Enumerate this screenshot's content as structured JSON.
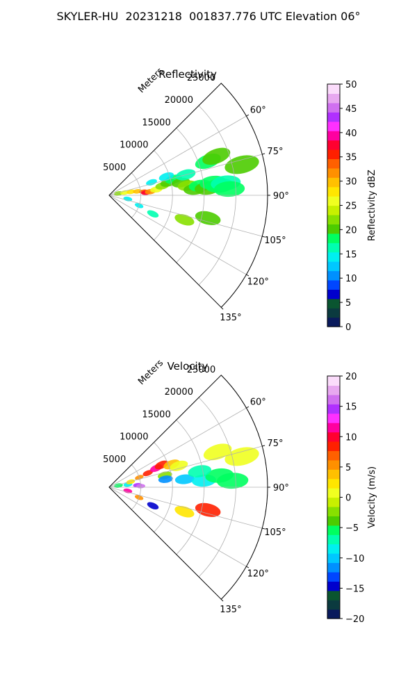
{
  "figure_title": "SKYLER-HU  20231218  001837.776 UTC Elevation 06°",
  "chart_data": [
    {
      "type": "heatmap",
      "subtype": "polar-sector (radar PPI)",
      "title": "Reflectivity",
      "radial_label": "Meters",
      "radial_ticks": [
        5000,
        10000,
        15000,
        20000,
        25000
      ],
      "radial_tick_labels": [
        "5000",
        "10000",
        "15000",
        "20000",
        "25000"
      ],
      "angle_range_deg": [
        45,
        135
      ],
      "angle_ticks": [
        60,
        75,
        90,
        105,
        120,
        135
      ],
      "angle_tick_labels": [
        "60°",
        "75°",
        "90°",
        "105°",
        "120°",
        "135°"
      ],
      "rmax": 25000,
      "grid": true,
      "colorbar": {
        "label": "Reflectivity dBZ",
        "range": [
          0,
          50
        ],
        "ticks": [
          0,
          5,
          10,
          15,
          20,
          25,
          30,
          35,
          40,
          45,
          50
        ],
        "tick_labels": [
          "0",
          "5",
          "10",
          "15",
          "20",
          "25",
          "30",
          "35",
          "40",
          "45",
          "50"
        ],
        "colors": [
          "#0a1a5c",
          "#0b3a3f",
          "#0a5530",
          "#0000cd",
          "#0046ff",
          "#0090ff",
          "#00c8ff",
          "#00f0f0",
          "#00ffb0",
          "#00ff60",
          "#4ccc00",
          "#88e000",
          "#c8f000",
          "#f0ff20",
          "#ffe600",
          "#ffc000",
          "#ff9000",
          "#ff6000",
          "#ff2000",
          "#ff0030",
          "#ff00a0",
          "#ff30ff",
          "#b030ff",
          "#d070f0",
          "#e8a8f0",
          "#fbdcfb"
        ]
      },
      "echoes": [
        {
          "az": 79,
          "r": 1500,
          "value": 22
        },
        {
          "az": 80,
          "r": 2500,
          "value": 25
        },
        {
          "az": 81,
          "r": 3500,
          "value": 27
        },
        {
          "az": 82,
          "r": 4500,
          "value": 29
        },
        {
          "az": 84,
          "r": 5500,
          "value": 34
        },
        {
          "az": 86,
          "r": 5800,
          "value": 37
        },
        {
          "az": 85,
          "r": 6500,
          "value": 31
        },
        {
          "az": 83,
          "r": 7500,
          "value": 26
        },
        {
          "az": 80,
          "r": 8500,
          "value": 23
        },
        {
          "az": 78,
          "r": 9500,
          "value": 21
        },
        {
          "az": 76,
          "r": 10500,
          "value": 19
        },
        {
          "az": 80,
          "r": 11500,
          "value": 20
        },
        {
          "az": 83,
          "r": 12500,
          "value": 22
        },
        {
          "az": 86,
          "r": 13500,
          "value": 21
        },
        {
          "az": 84,
          "r": 14500,
          "value": 19
        },
        {
          "az": 86,
          "r": 15500,
          "value": 20
        },
        {
          "az": 83,
          "r": 16500,
          "value": 18
        },
        {
          "az": 85,
          "r": 17500,
          "value": 19
        },
        {
          "az": 84,
          "r": 18500,
          "value": 17
        },
        {
          "az": 87,
          "r": 19000,
          "value": 18
        },
        {
          "az": 73,
          "r": 7000,
          "value": 15
        },
        {
          "az": 72,
          "r": 9500,
          "value": 14
        },
        {
          "az": 75,
          "r": 12500,
          "value": 17
        },
        {
          "az": 71,
          "r": 16500,
          "value": 18
        },
        {
          "az": 70,
          "r": 18000,
          "value": 20
        },
        {
          "az": 77,
          "r": 21500,
          "value": 21
        },
        {
          "az": 101,
          "r": 3000,
          "value": 15
        },
        {
          "az": 109,
          "r": 5000,
          "value": 14
        },
        {
          "az": 113,
          "r": 7500,
          "value": 16
        },
        {
          "az": 103,
          "r": 16000,
          "value": 20
        },
        {
          "az": 108,
          "r": 12500,
          "value": 22
        }
      ]
    },
    {
      "type": "heatmap",
      "subtype": "polar-sector (radar PPI)",
      "title": "Velocity",
      "radial_label": "Meters",
      "radial_ticks": [
        5000,
        10000,
        15000,
        20000,
        25000
      ],
      "radial_tick_labels": [
        "5000",
        "10000",
        "15000",
        "20000",
        "25000"
      ],
      "angle_range_deg": [
        45,
        135
      ],
      "angle_ticks": [
        60,
        75,
        90,
        105,
        120,
        135
      ],
      "angle_tick_labels": [
        "60°",
        "75°",
        "90°",
        "105°",
        "120°",
        "135°"
      ],
      "rmax": 25000,
      "grid": true,
      "colorbar": {
        "label": "Velocity (m/s)",
        "range": [
          -20,
          20
        ],
        "ticks": [
          -20,
          -15,
          -10,
          -5,
          0,
          5,
          10,
          15,
          20
        ],
        "tick_labels": [
          "−20",
          "−15",
          "−10",
          "−5",
          "0",
          "5",
          "10",
          "15",
          "20"
        ],
        "colors": [
          "#0a1a5c",
          "#0b3a3f",
          "#0a5530",
          "#0000cd",
          "#0046ff",
          "#0090ff",
          "#00c8ff",
          "#00f0f0",
          "#00ffb0",
          "#00ff60",
          "#4ccc00",
          "#88e000",
          "#c8f000",
          "#f0ff20",
          "#ffe600",
          "#ffc000",
          "#ff9000",
          "#ff6000",
          "#ff2000",
          "#ff0030",
          "#ff00a0",
          "#ff30ff",
          "#b030ff",
          "#d070f0",
          "#e8a8f0",
          "#fbdcfb"
        ]
      },
      "echoes": [
        {
          "az": 80,
          "r": 1500,
          "value": -6
        },
        {
          "az": 82,
          "r": 3000,
          "value": -9
        },
        {
          "az": 86,
          "r": 4500,
          "value": 15
        },
        {
          "az": 88,
          "r": 5000,
          "value": 16
        },
        {
          "az": 76,
          "r": 3500,
          "value": 2
        },
        {
          "az": 72,
          "r": 5000,
          "value": 5
        },
        {
          "az": 70,
          "r": 6500,
          "value": 9
        },
        {
          "az": 68,
          "r": 8000,
          "value": 11
        },
        {
          "az": 67,
          "r": 9000,
          "value": 9
        },
        {
          "az": 70,
          "r": 10500,
          "value": 4
        },
        {
          "az": 73,
          "r": 11500,
          "value": 1
        },
        {
          "az": 78,
          "r": 9000,
          "value": -3
        },
        {
          "az": 82,
          "r": 9000,
          "value": -11
        },
        {
          "az": 84,
          "r": 12000,
          "value": -10
        },
        {
          "az": 86,
          "r": 15000,
          "value": -8
        },
        {
          "az": 84,
          "r": 17500,
          "value": -6
        },
        {
          "az": 87,
          "r": 19500,
          "value": -5
        },
        {
          "az": 80,
          "r": 14500,
          "value": -7
        },
        {
          "az": 72,
          "r": 18000,
          "value": 0
        },
        {
          "az": 77,
          "r": 21500,
          "value": 1
        },
        {
          "az": 101,
          "r": 3000,
          "value": 11
        },
        {
          "az": 109,
          "r": 5000,
          "value": 6
        },
        {
          "az": 113,
          "r": 7500,
          "value": -14
        },
        {
          "az": 103,
          "r": 16000,
          "value": 9
        },
        {
          "az": 108,
          "r": 12500,
          "value": 2
        }
      ]
    }
  ]
}
